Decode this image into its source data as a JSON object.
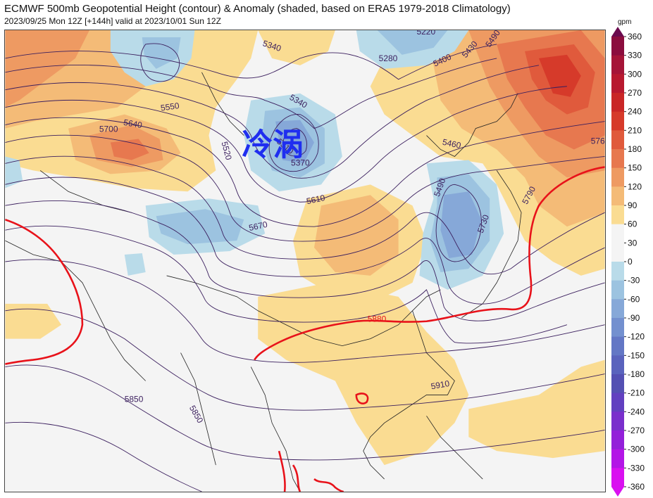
{
  "header": {
    "title": "ECMWF 500mb Geopotential Height (contour) & Anomaly (shaded, based on ERA5 1979-2018 Climatology)",
    "subtitle": "2023/09/25 Mon 12Z [+144h] valid at 2023/10/01 Sun 12Z"
  },
  "map": {
    "annotation": "冷涡",
    "contour_labels": [
      "5340",
      "5280",
      "5220",
      "5400",
      "5430",
      "5490",
      "5550",
      "5640",
      "5700",
      "5520",
      "5340",
      "5310",
      "5370",
      "5460",
      "5490",
      "5610",
      "5670",
      "5730",
      "5790",
      "576",
      "5880",
      "5910",
      "5850",
      "5850",
      "5370",
      "5460"
    ],
    "highlight_contour": "5880"
  },
  "colorbar": {
    "unit": "gpm",
    "ticks": [
      "360",
      "330",
      "300",
      "270",
      "240",
      "210",
      "180",
      "150",
      "120",
      "90",
      "60",
      "30",
      "0",
      "-30",
      "-60",
      "-90",
      "-120",
      "-150",
      "-180",
      "-210",
      "-240",
      "-270",
      "-300",
      "-330",
      "-360"
    ],
    "colors": [
      "#6b0a4e",
      "#8b0d3e",
      "#a51538",
      "#b8192f",
      "#c92626",
      "#d63a2a",
      "#e05a3c",
      "#e7784f",
      "#ee9a62",
      "#f4bb77",
      "#fadc92",
      "#f4f4f4",
      "#f4f4f4",
      "#b9dbe9",
      "#9cc3e0",
      "#86a8d8",
      "#7390cf",
      "#6377c5",
      "#5a63bd",
      "#5450b3",
      "#6240c0",
      "#7a2fcc",
      "#9320d9",
      "#b316e6",
      "#d910f0"
    ]
  }
}
